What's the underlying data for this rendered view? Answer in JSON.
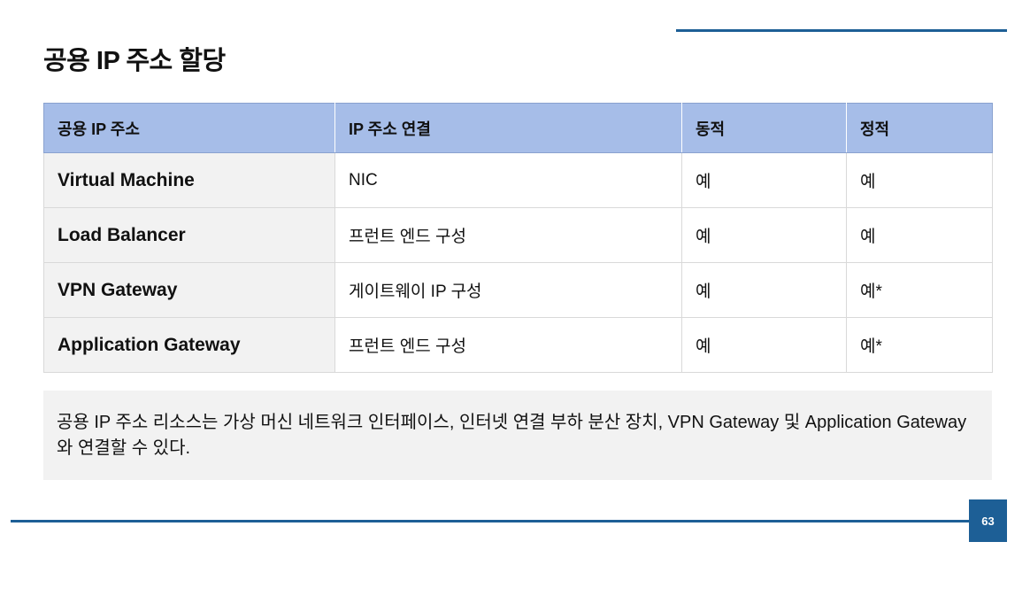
{
  "slide": {
    "title": "공용 IP 주소 할당",
    "page_number": "63"
  },
  "table": {
    "headers": [
      "공용 IP 주소",
      "IP 주소 연결",
      "동적",
      "정적"
    ],
    "rows": [
      [
        "Virtual Machine",
        "NIC",
        "예",
        "예"
      ],
      [
        "Load Balancer",
        "프런트 엔드 구성",
        "예",
        "예"
      ],
      [
        "VPN Gateway",
        "게이트웨이 IP 구성",
        "예",
        "예*"
      ],
      [
        "Application Gateway",
        "프런트 엔드 구성",
        "예",
        "예*"
      ]
    ]
  },
  "note": {
    "text": "공용 IP 주소 리소스는 가상 머신 네트워크 인터페이스, 인터넷 연결 부하 분산 장치, VPN Gateway 및 Application Gateway와 연결할 수 있다."
  },
  "colors": {
    "accent": "#1d5f96",
    "header_fill": "#a6bde8",
    "row_head_fill": "#f2f2f2",
    "note_fill": "#f2f2f2"
  }
}
